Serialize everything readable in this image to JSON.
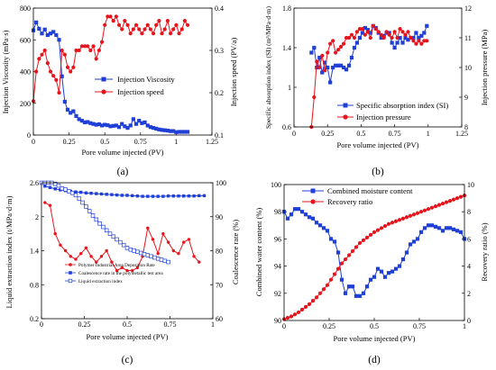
{
  "panels": [
    {
      "label": "(a)",
      "xlabel": "Pore volume injected (PV)",
      "ylabel_left": "Injection Viscosity (mPa·s)",
      "ylabel_right": "Injection speed (PV/a)",
      "xticks": [
        "0",
        "0.25",
        "0.5",
        "0.75",
        "1",
        "1.25"
      ],
      "yticks_left": [
        "0",
        "200",
        "400",
        "600",
        "800"
      ],
      "yticks_right": [
        "0.1",
        "0.2",
        "0.3",
        "0.4"
      ],
      "legend": [
        "Injection Viscosity",
        "Injection speed"
      ]
    },
    {
      "label": "(b)",
      "xlabel": "Pore volume injected (PV)",
      "ylabel_left": "Specific absorption index (SI) (m³/MPa·d·m)",
      "ylabel_right": "Injection pressure (MPa)",
      "xticks": [
        "0",
        "0.25",
        "0.5",
        "0.75",
        "1",
        "1.25"
      ],
      "yticks_left": [
        "0.6",
        "1",
        "1.4",
        "1.8"
      ],
      "yticks_right": [
        "8",
        "9",
        "10",
        "11",
        "12"
      ],
      "legend": [
        "Specific absorption index (SI)",
        "Injection pressure"
      ]
    },
    {
      "label": "(c)",
      "xlabel": "Pore volume injected (PV)",
      "ylabel_left": "Liquid extraction index (t/MPa·d·m)",
      "ylabel_right": "Coalescence rate (%)",
      "xticks": [
        "0",
        "0.25",
        "0.5",
        "0.75",
        "1"
      ],
      "yticks_left": [
        "0.2",
        "0.8",
        "1.4",
        "2",
        "2.6"
      ],
      "yticks_right": [
        "60",
        "70",
        "80",
        "90",
        "100"
      ],
      "legend": [
        "Polymer Industrial Area Deposition Rate",
        "Coalescence rate in the polymetallic test area",
        "Liquid extraction index"
      ]
    },
    {
      "label": "(d)",
      "xlabel": "Pore volume injected (PV)",
      "ylabel_left": "Combined water content (%)",
      "ylabel_right": "Recovery ratio (%)",
      "xticks": [
        "0",
        "0.25",
        "0.5",
        "0.75",
        "1"
      ],
      "yticks_left": [
        "90",
        "92",
        "94",
        "96",
        "98",
        "100"
      ],
      "yticks_right": [
        "0",
        "2",
        "4",
        "6",
        "8",
        "10"
      ],
      "legend": [
        "Combined moisture content",
        "Recovery ratio"
      ]
    }
  ],
  "colors": {
    "blue": "#1f3fd6",
    "red": "#e8141c",
    "axis": "#000000"
  },
  "chart_data": [
    {
      "type": "line",
      "xlim": [
        0,
        1.25
      ],
      "ylim_left": [
        0,
        800
      ],
      "ylim_right": [
        0.1,
        0.4
      ],
      "series": [
        {
          "name": "Injection Viscosity",
          "axis": "left",
          "marker": "square",
          "color": "#1f3fd6",
          "x": [
            0,
            0.02,
            0.04,
            0.06,
            0.08,
            0.1,
            0.12,
            0.14,
            0.16,
            0.18,
            0.2,
            0.22,
            0.24,
            0.26,
            0.28,
            0.3,
            0.32,
            0.34,
            0.36,
            0.38,
            0.4,
            0.42,
            0.44,
            0.46,
            0.48,
            0.5,
            0.52,
            0.54,
            0.56,
            0.58,
            0.6,
            0.62,
            0.64,
            0.66,
            0.68,
            0.7,
            0.72,
            0.74,
            0.76,
            0.78,
            0.8,
            0.82,
            0.84,
            0.86,
            0.88,
            0.9,
            0.92,
            0.94,
            0.96,
            0.98,
            1.0,
            1.02,
            1.04,
            1.06,
            1.08
          ],
          "y": [
            660,
            710,
            670,
            640,
            665,
            630,
            640,
            650,
            630,
            600,
            370,
            210,
            160,
            140,
            150,
            120,
            100,
            90,
            80,
            82,
            75,
            70,
            65,
            68,
            60,
            65,
            62,
            55,
            58,
            60,
            50,
            70,
            55,
            45,
            60,
            100,
            70,
            90,
            75,
            80,
            60,
            50,
            45,
            40,
            35,
            32,
            30,
            28,
            25,
            25,
            18,
            20,
            20,
            20,
            20
          ]
        },
        {
          "name": "Injection speed",
          "axis": "right",
          "marker": "circle",
          "color": "#e8141c",
          "x": [
            0,
            0.02,
            0.04,
            0.06,
            0.08,
            0.1,
            0.12,
            0.14,
            0.16,
            0.18,
            0.2,
            0.22,
            0.24,
            0.26,
            0.28,
            0.3,
            0.32,
            0.34,
            0.36,
            0.38,
            0.4,
            0.42,
            0.44,
            0.46,
            0.48,
            0.5,
            0.52,
            0.54,
            0.56,
            0.58,
            0.6,
            0.62,
            0.64,
            0.66,
            0.68,
            0.7,
            0.72,
            0.74,
            0.76,
            0.78,
            0.8,
            0.82,
            0.84,
            0.86,
            0.88,
            0.9,
            0.92,
            0.94,
            0.96,
            0.98,
            1.0,
            1.02,
            1.04,
            1.06,
            1.08
          ],
          "y": [
            0.18,
            0.25,
            0.28,
            0.29,
            0.3,
            0.27,
            0.25,
            0.24,
            0.23,
            0.2,
            0.3,
            0.29,
            0.26,
            0.25,
            0.26,
            0.3,
            0.3,
            0.31,
            0.31,
            0.31,
            0.3,
            0.31,
            0.28,
            0.3,
            0.32,
            0.36,
            0.38,
            0.38,
            0.37,
            0.38,
            0.36,
            0.35,
            0.37,
            0.36,
            0.34,
            0.35,
            0.36,
            0.35,
            0.34,
            0.35,
            0.36,
            0.35,
            0.34,
            0.36,
            0.37,
            0.34,
            0.35,
            0.37,
            0.34,
            0.35,
            0.36,
            0.34,
            0.35,
            0.37,
            0.36
          ]
        }
      ]
    },
    {
      "type": "line",
      "xlim": [
        0,
        1.25
      ],
      "ylim_left": [
        0.6,
        1.8
      ],
      "ylim_right": [
        8,
        12
      ],
      "series": [
        {
          "name": "Specific absorption index (SI)",
          "axis": "left",
          "marker": "square",
          "color": "#1f3fd6",
          "x": [
            0.13,
            0.15,
            0.17,
            0.19,
            0.21,
            0.23,
            0.25,
            0.27,
            0.29,
            0.31,
            0.33,
            0.35,
            0.37,
            0.39,
            0.41,
            0.43,
            0.45,
            0.47,
            0.49,
            0.51,
            0.53,
            0.55,
            0.57,
            0.59,
            0.61,
            0.63,
            0.65,
            0.67,
            0.69,
            0.71,
            0.73,
            0.75,
            0.77,
            0.79,
            0.81,
            0.83,
            0.85,
            0.87,
            0.89,
            0.91,
            0.93,
            0.95,
            0.97,
            0.99
          ],
          "y": [
            1.35,
            1.4,
            1.2,
            1.3,
            1.15,
            1.25,
            1.2,
            1.05,
            1.2,
            1.22,
            1.22,
            1.22,
            1.2,
            1.18,
            1.22,
            1.3,
            1.4,
            1.45,
            1.5,
            1.55,
            1.6,
            1.58,
            1.55,
            1.62,
            1.6,
            1.55,
            1.5,
            1.52,
            1.55,
            1.55,
            1.45,
            1.4,
            1.45,
            1.5,
            1.45,
            1.5,
            1.48,
            1.5,
            1.5,
            1.55,
            1.5,
            1.52,
            1.55,
            1.62
          ]
        },
        {
          "name": "Injection pressure",
          "axis": "right",
          "marker": "circle",
          "color": "#e8141c",
          "x": [
            0.13,
            0.15,
            0.17,
            0.19,
            0.21,
            0.23,
            0.25,
            0.27,
            0.29,
            0.31,
            0.33,
            0.35,
            0.37,
            0.39,
            0.41,
            0.43,
            0.45,
            0.47,
            0.49,
            0.51,
            0.53,
            0.55,
            0.57,
            0.59,
            0.61,
            0.63,
            0.65,
            0.67,
            0.69,
            0.71,
            0.73,
            0.75,
            0.77,
            0.79,
            0.81,
            0.83,
            0.85,
            0.87,
            0.89,
            0.91,
            0.93,
            0.95,
            0.97,
            0.99
          ],
          "y": [
            8.0,
            9.0,
            10.2,
            10.0,
            10.4,
            9.9,
            10.5,
            10.8,
            10.9,
            10.5,
            10.6,
            10.7,
            10.8,
            11.0,
            11.0,
            11.1,
            11.0,
            11.2,
            11.3,
            11.3,
            11.1,
            11.2,
            11.0,
            11.4,
            11.3,
            11.2,
            11.1,
            11.0,
            11.2,
            11.1,
            11.0,
            11.2,
            11.0,
            11.3,
            11.2,
            11.1,
            11.2,
            11.0,
            10.9,
            10.8,
            10.9,
            10.8,
            10.9,
            10.9
          ]
        }
      ]
    },
    {
      "type": "line",
      "xlim": [
        0,
        1
      ],
      "ylim_left": [
        0.2,
        2.6
      ],
      "ylim_right": [
        60,
        100
      ],
      "series": [
        {
          "name": "Polymer Industrial Area Deposition Rate",
          "axis": "left",
          "marker": "circle",
          "color": "#e8141c",
          "x": [
            0.02,
            0.05,
            0.08,
            0.11,
            0.14,
            0.17,
            0.2,
            0.23,
            0.26,
            0.29,
            0.32,
            0.35,
            0.38,
            0.41,
            0.44,
            0.47,
            0.5,
            0.53,
            0.56,
            0.59,
            0.62,
            0.65,
            0.68,
            0.71,
            0.74,
            0.77,
            0.8,
            0.83,
            0.86,
            0.89,
            0.92
          ],
          "y": [
            2.25,
            2.2,
            1.7,
            1.5,
            1.4,
            1.3,
            1.25,
            1.35,
            1.45,
            1.3,
            1.2,
            1.3,
            1.4,
            1.2,
            1.05,
            1.1,
            1.05,
            1.05,
            1.1,
            1.3,
            1.8,
            1.6,
            1.35,
            1.7,
            1.55,
            1.4,
            1.35,
            1.55,
            1.6,
            1.3,
            1.2
          ]
        },
        {
          "name": "Coalescence rate in the polymetallic test area",
          "axis": "right",
          "marker": "square",
          "color": "#1f3fd6",
          "x": [
            0.02,
            0.05,
            0.08,
            0.11,
            0.14,
            0.17,
            0.2,
            0.23,
            0.26,
            0.29,
            0.32,
            0.35,
            0.38,
            0.41,
            0.44,
            0.47,
            0.5,
            0.53,
            0.56,
            0.59,
            0.62,
            0.65,
            0.68,
            0.71,
            0.74,
            0.77,
            0.8,
            0.83,
            0.86,
            0.89,
            0.92,
            0.95
          ],
          "y": [
            99.0,
            98.6,
            98.2,
            97.9,
            97.7,
            97.5,
            97.3,
            97.2,
            97.0,
            96.9,
            96.8,
            96.7,
            96.6,
            96.5,
            96.4,
            96.3,
            96.3,
            96.2,
            96.1,
            96.0,
            96.0,
            96.0,
            96.0,
            96.0,
            96.1,
            96.1,
            96.1,
            96.1,
            96.1,
            96.1,
            96.2,
            96.2
          ]
        },
        {
          "name": "Liquid extraction index",
          "axis": "left",
          "marker": "square-open",
          "color": "#1f3fd6",
          "x": [
            0.0,
            0.02,
            0.04,
            0.06,
            0.08,
            0.1,
            0.12,
            0.14,
            0.16,
            0.18,
            0.2,
            0.22,
            0.24,
            0.26,
            0.28,
            0.3,
            0.32,
            0.34,
            0.36,
            0.38,
            0.4,
            0.42,
            0.44,
            0.46,
            0.48,
            0.5,
            0.52,
            0.54,
            0.56,
            0.58,
            0.6,
            0.62,
            0.64,
            0.66,
            0.68,
            0.7,
            0.72,
            0.74
          ],
          "y": [
            2.6,
            2.6,
            2.6,
            2.6,
            2.58,
            2.55,
            2.5,
            2.48,
            2.45,
            2.42,
            2.38,
            2.32,
            2.25,
            2.18,
            2.1,
            2.02,
            1.95,
            1.88,
            1.82,
            1.76,
            1.7,
            1.65,
            1.6,
            1.55,
            1.5,
            1.45,
            1.42,
            1.4,
            1.38,
            1.36,
            1.34,
            1.32,
            1.3,
            1.28,
            1.26,
            1.24,
            1.22,
            1.2
          ]
        }
      ]
    },
    {
      "type": "line",
      "xlim": [
        0,
        1
      ],
      "ylim_left": [
        90,
        100
      ],
      "ylim_right": [
        0,
        10
      ],
      "series": [
        {
          "name": "Combined moisture content",
          "axis": "left",
          "marker": "square",
          "color": "#1f3fd6",
          "x": [
            0.0,
            0.02,
            0.04,
            0.06,
            0.08,
            0.1,
            0.12,
            0.14,
            0.16,
            0.18,
            0.2,
            0.22,
            0.24,
            0.26,
            0.28,
            0.3,
            0.32,
            0.34,
            0.36,
            0.38,
            0.4,
            0.42,
            0.44,
            0.46,
            0.48,
            0.5,
            0.52,
            0.54,
            0.56,
            0.58,
            0.6,
            0.62,
            0.64,
            0.66,
            0.68,
            0.7,
            0.72,
            0.74,
            0.76,
            0.78,
            0.8,
            0.82,
            0.84,
            0.86,
            0.88,
            0.9,
            0.92,
            0.94,
            0.96,
            0.98,
            1.0
          ],
          "y": [
            98.0,
            97.5,
            97.8,
            98.2,
            98.2,
            98.0,
            97.8,
            97.6,
            97.5,
            97.2,
            97.0,
            96.8,
            96.6,
            96.0,
            95.8,
            95.0,
            93.0,
            92.0,
            92.5,
            92.5,
            91.8,
            91.8,
            92.0,
            92.5,
            93.0,
            93.2,
            93.8,
            93.6,
            93.2,
            93.5,
            93.6,
            93.8,
            94.0,
            94.5,
            95.0,
            95.6,
            95.8,
            96.0,
            96.5,
            96.8,
            97.0,
            97.0,
            96.9,
            96.8,
            96.6,
            96.8,
            96.8,
            96.7,
            96.6,
            96.5,
            96.0
          ]
        },
        {
          "name": "Recovery ratio",
          "axis": "right",
          "marker": "circle",
          "color": "#e8141c",
          "x": [
            0.0,
            0.02,
            0.04,
            0.06,
            0.08,
            0.1,
            0.12,
            0.14,
            0.16,
            0.18,
            0.2,
            0.22,
            0.24,
            0.26,
            0.28,
            0.3,
            0.32,
            0.34,
            0.36,
            0.38,
            0.4,
            0.42,
            0.44,
            0.46,
            0.48,
            0.5,
            0.52,
            0.54,
            0.56,
            0.58,
            0.6,
            0.62,
            0.64,
            0.66,
            0.68,
            0.7,
            0.72,
            0.74,
            0.76,
            0.78,
            0.8,
            0.82,
            0.84,
            0.86,
            0.88,
            0.9,
            0.92,
            0.94,
            0.96,
            0.98,
            1.0
          ],
          "y": [
            0.1,
            0.2,
            0.3,
            0.45,
            0.6,
            0.8,
            1.0,
            1.2,
            1.45,
            1.7,
            2.0,
            2.3,
            2.6,
            3.0,
            3.4,
            3.8,
            4.2,
            4.5,
            4.8,
            5.1,
            5.4,
            5.7,
            5.9,
            6.1,
            6.3,
            6.5,
            6.65,
            6.8,
            6.95,
            7.1,
            7.2,
            7.3,
            7.4,
            7.5,
            7.6,
            7.7,
            7.8,
            7.9,
            8.0,
            8.1,
            8.2,
            8.3,
            8.4,
            8.5,
            8.6,
            8.7,
            8.8,
            8.9,
            9.0,
            9.1,
            9.2
          ]
        }
      ]
    }
  ]
}
